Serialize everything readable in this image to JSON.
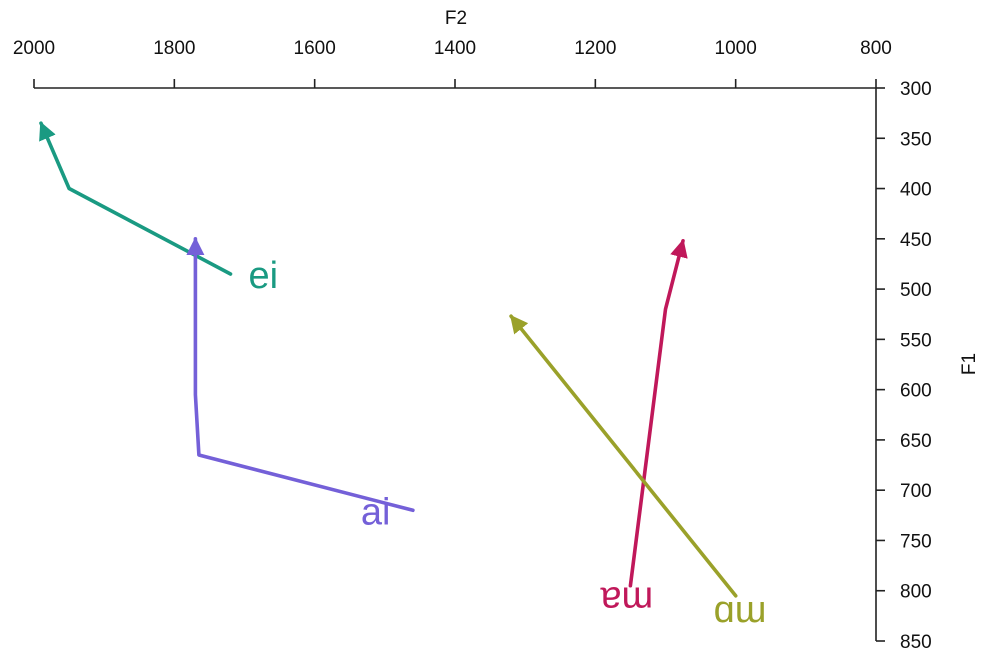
{
  "chart_data": {
    "type": "line",
    "title": "",
    "xlabel": "F2",
    "ylabel": "F1",
    "xlim": [
      2000,
      800
    ],
    "ylim": [
      300,
      850
    ],
    "x_reversed": true,
    "y_reversed": true,
    "x_axis_position": "top",
    "y_axis_position": "right",
    "grid": false,
    "x_ticks": [
      2000,
      1800,
      1600,
      1400,
      1200,
      1000,
      800
    ],
    "y_ticks": [
      300,
      350,
      400,
      450,
      500,
      550,
      600,
      650,
      700,
      750,
      800,
      850
    ],
    "series": [
      {
        "name": "ei",
        "color": "#1a9a82",
        "points": [
          [
            1720,
            485
          ],
          [
            1950,
            400
          ],
          [
            1990,
            335
          ]
        ]
      },
      {
        "name": "ai",
        "color": "#7460d8",
        "points": [
          [
            1460,
            720
          ],
          [
            1765,
            665
          ],
          [
            1770,
            605
          ],
          [
            1770,
            450
          ]
        ]
      },
      {
        "name": "ɐɯ",
        "color": "#c0185a",
        "points": [
          [
            1150,
            795
          ],
          [
            1100,
            520
          ],
          [
            1075,
            452
          ]
        ]
      },
      {
        "name": "ɑɯ",
        "color": "#9aa12a",
        "points": [
          [
            1000,
            805
          ],
          [
            1320,
            527
          ]
        ]
      }
    ]
  }
}
